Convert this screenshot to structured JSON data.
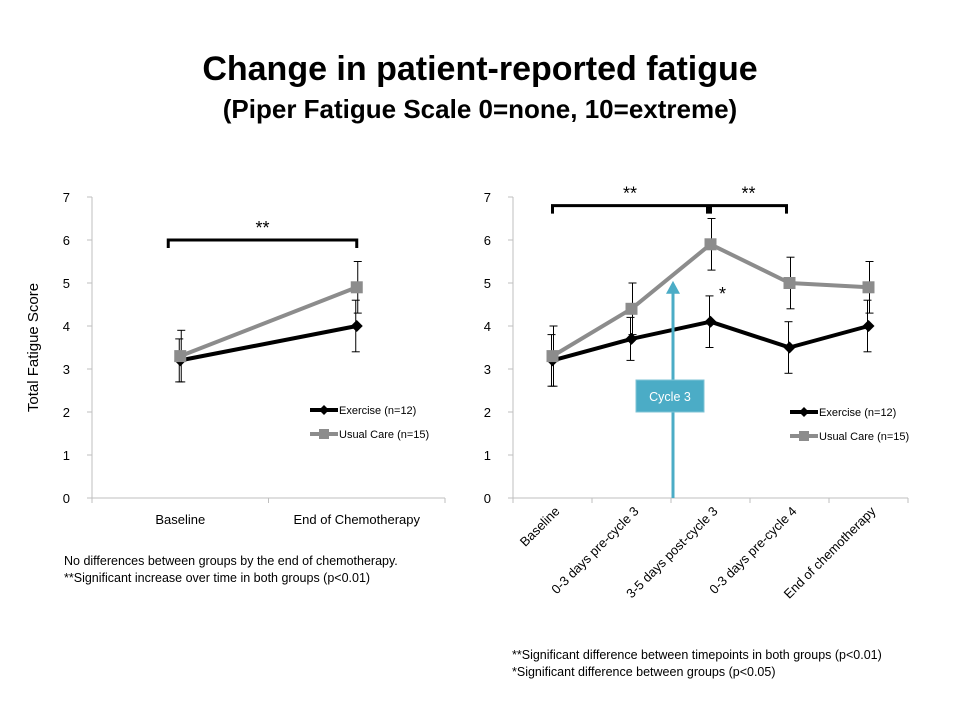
{
  "title": "Change in patient-reported fatigue",
  "subtitle": "(Piper Fatigue Scale 0=none, 10=extreme)",
  "colors": {
    "exercise": "#000000",
    "usual_care": "#8c8c8c",
    "arrow": "#4bacc6",
    "axis": "#bfbfbf"
  },
  "chart_data": [
    {
      "type": "line",
      "ylabel": "Total Fatigue Score",
      "ylim": [
        0,
        7
      ],
      "yticks": [
        "0",
        "1",
        "2",
        "3",
        "4",
        "5",
        "6",
        "7"
      ],
      "categories": [
        "Baseline",
        "End of Chemotherapy"
      ],
      "series": [
        {
          "name": "Exercise (n=12)",
          "values": [
            3.2,
            4.0
          ],
          "error": [
            0.5,
            0.6
          ],
          "marker": "diamond"
        },
        {
          "name": "Usual Care (n=15)",
          "values": [
            3.3,
            4.9
          ],
          "error": [
            0.6,
            0.6
          ],
          "marker": "square"
        }
      ],
      "brackets": [
        {
          "from": 0,
          "to": 1,
          "y": 6.0,
          "label": "**"
        }
      ],
      "legend": "right",
      "notes": [
        "No differences between groups by the end of chemotherapy.",
        "**Significant increase over time in both groups (p<0.01)"
      ]
    },
    {
      "type": "line",
      "ylabel": "",
      "ylim": [
        0,
        7
      ],
      "yticks": [
        "0",
        "1",
        "2",
        "3",
        "4",
        "5",
        "6",
        "7"
      ],
      "categories": [
        "Baseline",
        "0-3 days pre-cycle 3",
        "3-5 days post-cycle 3",
        "0-3 days pre-cycle 4",
        "End of chemotherapy"
      ],
      "series": [
        {
          "name": "Exercise (n=12)",
          "values": [
            3.2,
            3.7,
            4.1,
            3.5,
            4.0
          ],
          "error": [
            0.6,
            0.5,
            0.6,
            0.6,
            0.6
          ],
          "marker": "diamond"
        },
        {
          "name": "Usual Care (n=15)",
          "values": [
            3.3,
            4.4,
            5.9,
            5.0,
            4.9
          ],
          "error": [
            0.7,
            0.6,
            0.6,
            0.6,
            0.6
          ],
          "marker": "square"
        }
      ],
      "brackets": [
        {
          "from": 0,
          "to": 2,
          "y": 6.8,
          "label": "**"
        },
        {
          "from": 2,
          "to": 3,
          "y": 6.8,
          "label": "**"
        }
      ],
      "annotations": [
        {
          "at": 2,
          "y": 4.6,
          "label": "*"
        }
      ],
      "arrow": {
        "label": "Cycle 3"
      },
      "legend": "right",
      "notes": [
        "**Significant difference between timepoints in both groups (p<0.01)",
        "*Significant difference between groups (p<0.05)"
      ]
    }
  ]
}
